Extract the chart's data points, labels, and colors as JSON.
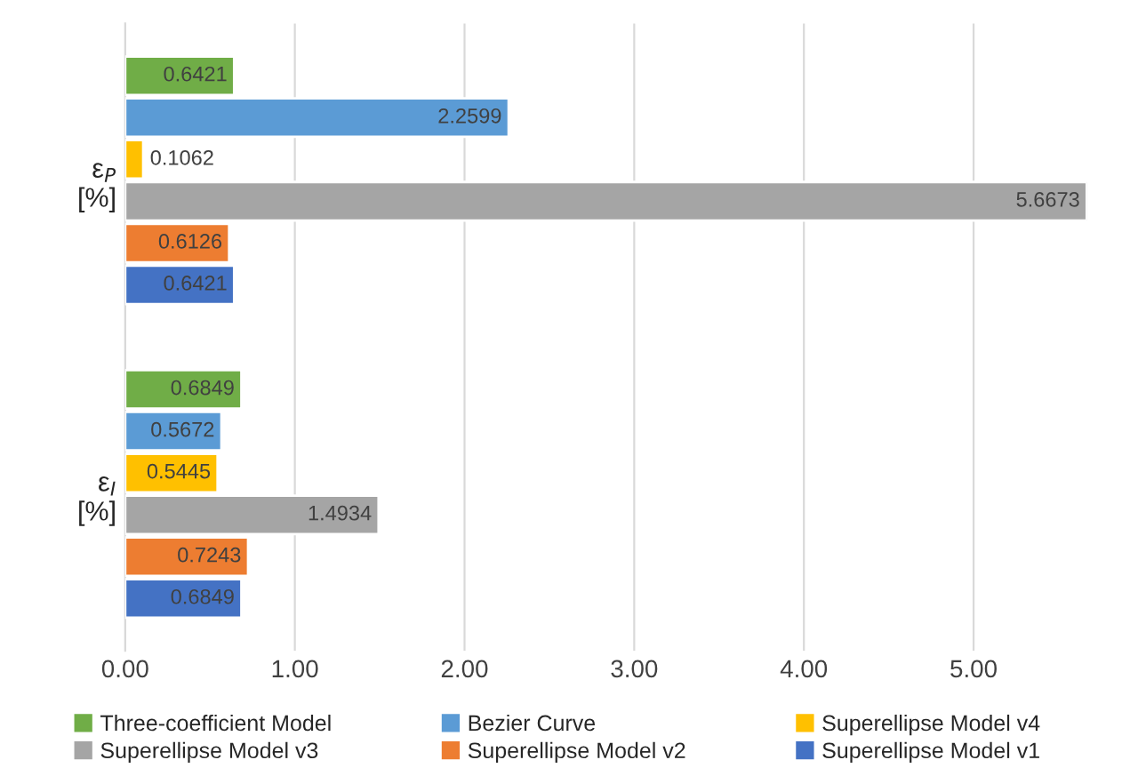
{
  "chart_data": {
    "type": "bar",
    "orientation": "horizontal",
    "categories": [
      "ε$_{P}$\n[%]",
      "ε$_{I}$\n[%]"
    ],
    "series": [
      {
        "name": "Three-coefficient Model",
        "color": "#70ad47",
        "values": [
          0.6421,
          0.6849
        ]
      },
      {
        "name": "Bezier Curve",
        "color": "#5b9bd5",
        "values": [
          2.2599,
          0.5672
        ]
      },
      {
        "name": "Superellipse Model v4",
        "color": "#ffc000",
        "values": [
          0.1062,
          0.5445
        ]
      },
      {
        "name": "Superellipse Model v3",
        "color": "#a5a5a5",
        "values": [
          5.6673,
          1.4934
        ]
      },
      {
        "name": "Superellipse Model v2",
        "color": "#ed7d31",
        "values": [
          0.6126,
          0.7243
        ]
      },
      {
        "name": "Superellipse Model v1",
        "color": "#4472c4",
        "values": [
          0.6421,
          0.6849
        ]
      }
    ],
    "xlim": [
      0,
      5.6673
    ],
    "xticks": [
      {
        "value": 0,
        "label": "0.00"
      },
      {
        "value": 1,
        "label": "1.00"
      },
      {
        "value": 2,
        "label": "2.00"
      },
      {
        "value": 3,
        "label": "3.00"
      },
      {
        "value": 4,
        "label": "4.00"
      },
      {
        "value": 5,
        "label": "5.00"
      }
    ],
    "grid": "x",
    "legend": "bottom",
    "data_labels": true
  }
}
